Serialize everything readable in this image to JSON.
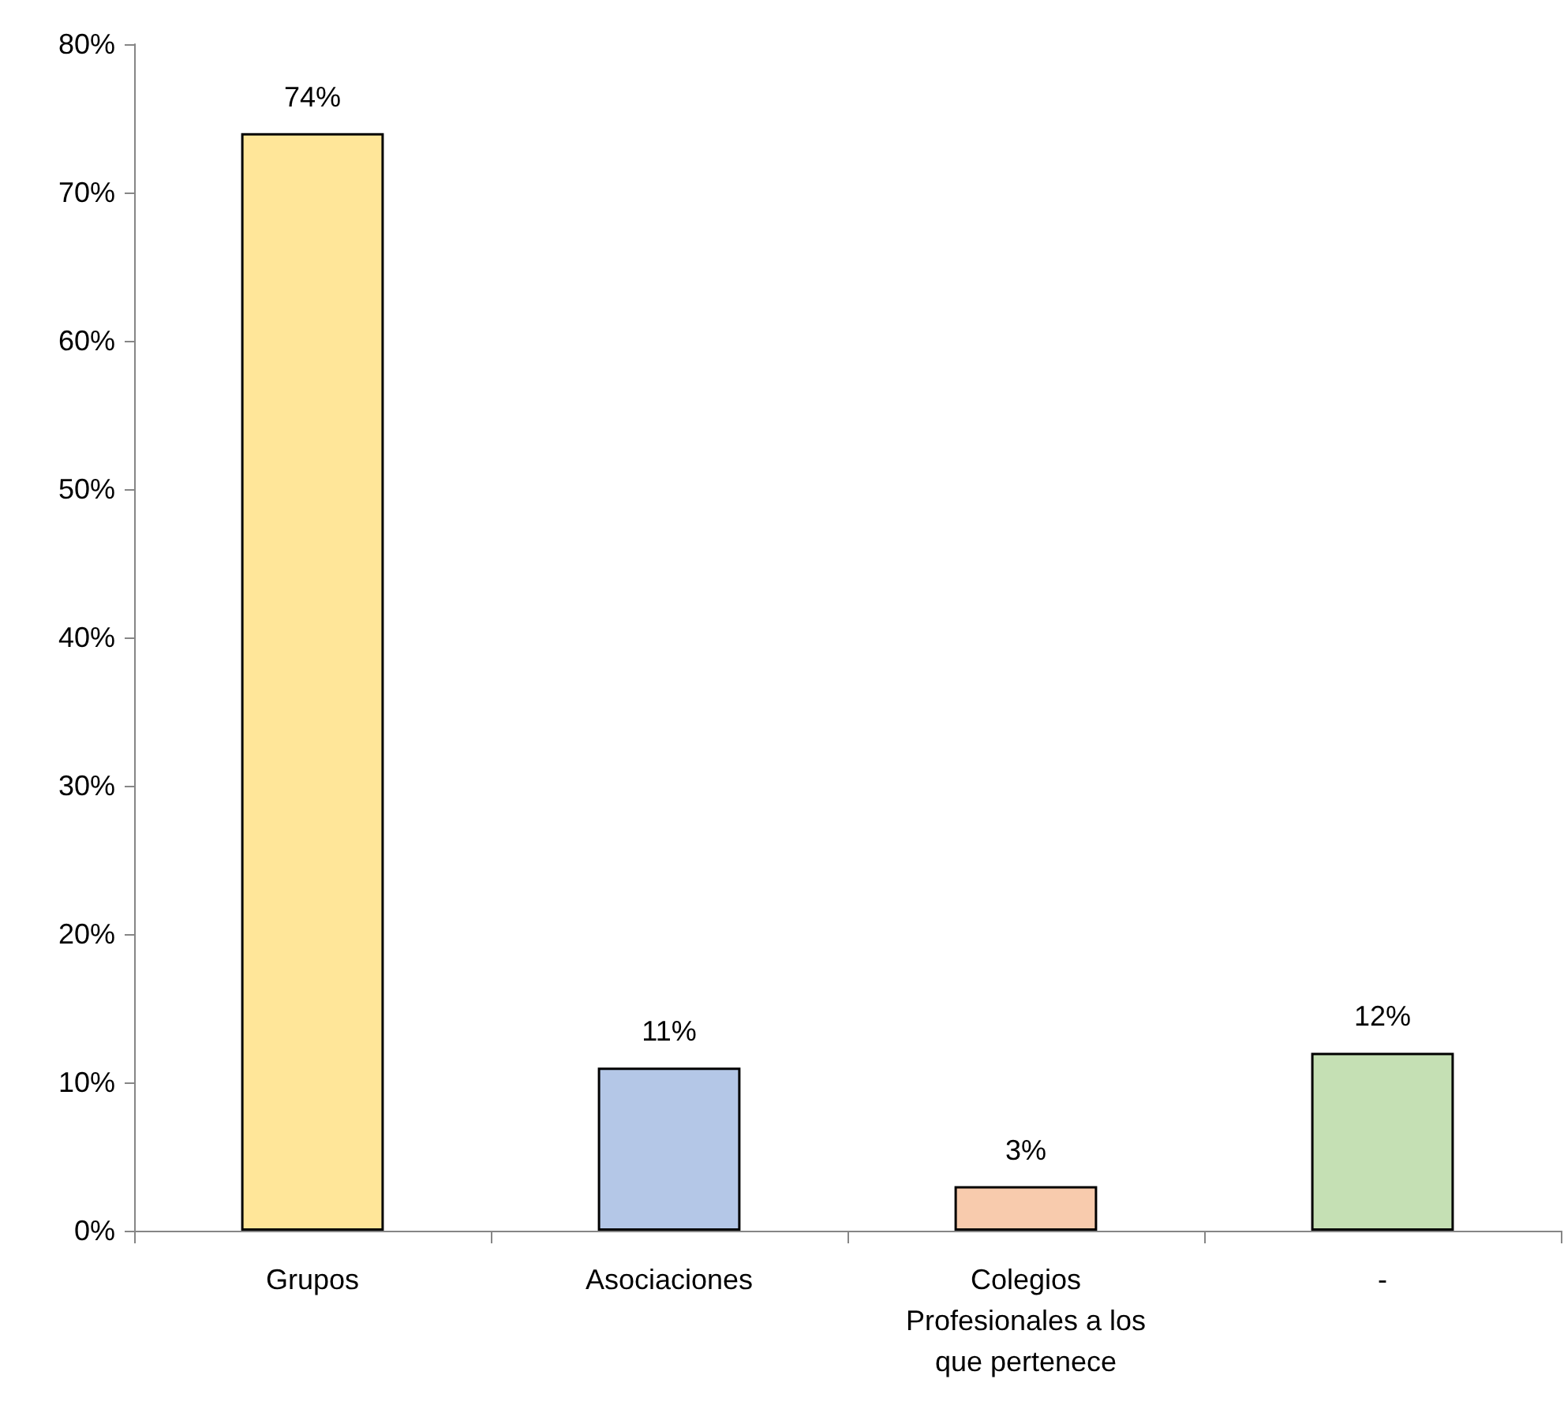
{
  "chart_data": {
    "type": "bar",
    "categories": [
      "Grupos",
      "Asociaciones",
      "Colegios Profesionales a los que pertenece",
      "-"
    ],
    "values": [
      74,
      11,
      3,
      12
    ],
    "colors": [
      "#ffe699",
      "#b4c7e7",
      "#f8cbad",
      "#c5e0b4"
    ],
    "value_labels": [
      "74%",
      "11%",
      "3%",
      "12%"
    ],
    "ylim": [
      0,
      80
    ],
    "yticks": [
      {
        "value": 0,
        "label": "0%"
      },
      {
        "value": 10,
        "label": "10%"
      },
      {
        "value": 20,
        "label": "20%"
      },
      {
        "value": 30,
        "label": "30%"
      },
      {
        "value": 40,
        "label": "40%"
      },
      {
        "value": 50,
        "label": "50%"
      },
      {
        "value": 60,
        "label": "60%"
      },
      {
        "value": 70,
        "label": "70%"
      },
      {
        "value": 80,
        "label": "80%"
      }
    ],
    "grid": false
  }
}
